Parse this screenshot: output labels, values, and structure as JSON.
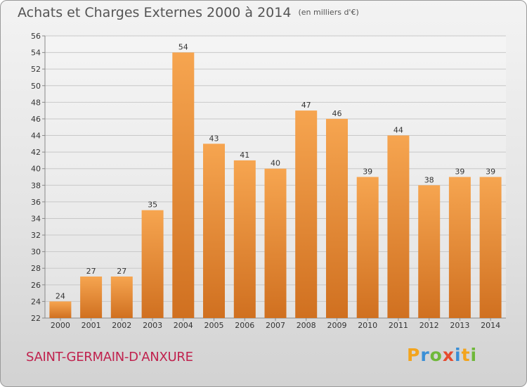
{
  "header": {
    "title": "Achats et Charges Externes 2000 à 2014",
    "subtitle": "(en milliers d'€)"
  },
  "footer": {
    "place": "SAINT-GERMAIN-D'ANXURE",
    "logo_text": "Proxiti",
    "logo_colors": [
      "#f3a41d",
      "#3a8fd6",
      "#6fb83a",
      "#e64a2e",
      "#3a8fd6",
      "#f3a41d",
      "#6fb83a"
    ]
  },
  "colors": {
    "bar_light": "#f6a550",
    "bar_dark": "#d07020",
    "grid": "#c8c8c8",
    "title": "#545454",
    "place": "#c0224e"
  },
  "chart_data": {
    "type": "bar",
    "title": "Achats et Charges Externes 2000 à 2014",
    "subtitle": "(en milliers d'€)",
    "xlabel": "",
    "ylabel": "",
    "categories": [
      "2000",
      "2001",
      "2002",
      "2003",
      "2004",
      "2005",
      "2006",
      "2007",
      "2008",
      "2009",
      "2010",
      "2011",
      "2012",
      "2013",
      "2014"
    ],
    "values": [
      24,
      27,
      27,
      35,
      54,
      43,
      41,
      40,
      47,
      46,
      39,
      44,
      38,
      39,
      39
    ],
    "data_labels": [
      "24",
      "27",
      "27",
      "35",
      "54",
      "43",
      "41",
      "40",
      "47",
      "46",
      "39",
      "44",
      "38",
      "39",
      "39"
    ],
    "ylim": [
      22,
      56
    ],
    "yticks": [
      "22",
      "24",
      "26",
      "28",
      "30",
      "32",
      "34",
      "36",
      "38",
      "40",
      "42",
      "44",
      "46",
      "48",
      "50",
      "52",
      "54",
      "56"
    ],
    "grid": true,
    "legend": "none"
  }
}
